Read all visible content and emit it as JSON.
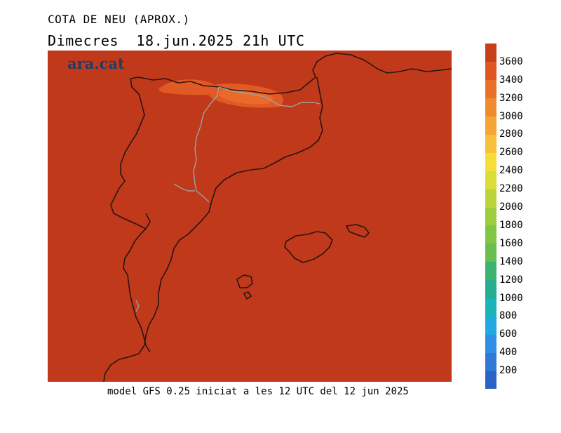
{
  "title": "COTA DE NEU (APROX.)",
  "subtitle": "Dimecres  18.jun.2025 21h UTC",
  "logo_text": "ara.cat",
  "footer": "model GFS 0.25 iniciat a les 12 UTC del 12 jun 2025",
  "colors": {
    "map_fill": "#c0391a",
    "coast": "#2a1414",
    "border": "#a0a0a0",
    "snow_light": "#e15a25",
    "snow_mid": "#ea6a2b"
  },
  "legend": {
    "levels": [
      {
        "label": "",
        "color": "#2a62c8"
      },
      {
        "label": "200",
        "color": "#2f78d6"
      },
      {
        "label": "400",
        "color": "#2e8de6"
      },
      {
        "label": "600",
        "color": "#22a8e0"
      },
      {
        "label": "800",
        "color": "#19b3b8"
      },
      {
        "label": "1000",
        "color": "#25ad92"
      },
      {
        "label": "1200",
        "color": "#3cb170"
      },
      {
        "label": "1400",
        "color": "#66bf4e"
      },
      {
        "label": "1600",
        "color": "#80c644"
      },
      {
        "label": "1800",
        "color": "#9ccd3d"
      },
      {
        "label": "2000",
        "color": "#bad43a"
      },
      {
        "label": "2200",
        "color": "#dadc3a"
      },
      {
        "label": "2400",
        "color": "#f5de38"
      },
      {
        "label": "2600",
        "color": "#f8c13a"
      },
      {
        "label": "2800",
        "color": "#f5a533"
      },
      {
        "label": "3000",
        "color": "#f08a2c"
      },
      {
        "label": "3200",
        "color": "#ea6f28"
      },
      {
        "label": "3400",
        "color": "#de5622"
      },
      {
        "label": "3600",
        "color": "#c73e1a"
      }
    ]
  }
}
